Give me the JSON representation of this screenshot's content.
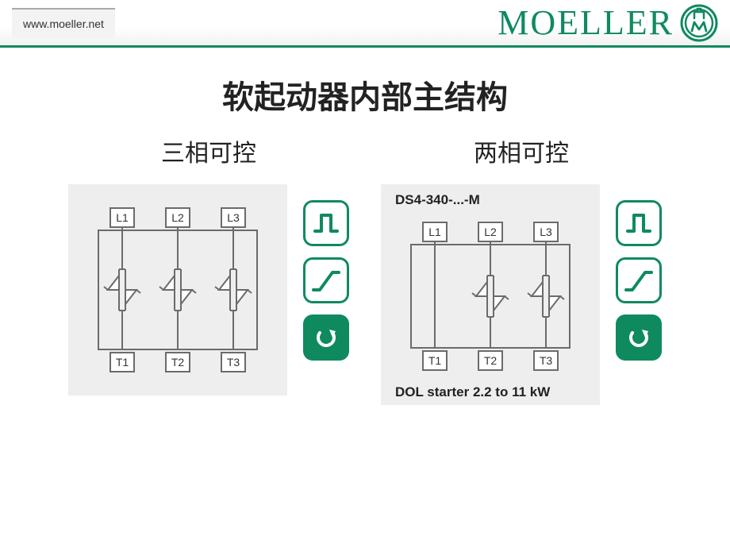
{
  "brand": {
    "url": "www.moeller.net",
    "name": "MOELLER",
    "color": "#0f8a5f"
  },
  "title": "软起动器内部主结构",
  "left": {
    "subtitle": "三相可控",
    "top_terminals": [
      "L1",
      "L2",
      "L3"
    ],
    "bottom_terminals": [
      "T1",
      "T2",
      "T3"
    ],
    "controlled_phases": [
      true,
      true,
      true
    ],
    "panel_bg": "#eeeeee",
    "stroke": "#6b6b6b"
  },
  "right": {
    "subtitle": "两相可控",
    "model": "DS4-340-...-M",
    "top_terminals": [
      "L1",
      "L2",
      "L3"
    ],
    "bottom_terminals": [
      "T1",
      "T2",
      "T3"
    ],
    "controlled_phases": [
      false,
      true,
      true
    ],
    "bottom_text": "DOL starter 2.2 to 11 kW",
    "panel_bg": "#eeeeee",
    "stroke": "#6b6b6b"
  },
  "icons": {
    "color": "#0f8a5f",
    "list": [
      "pulse",
      "ramp",
      "start"
    ]
  },
  "header_border": "#0f8a5f"
}
